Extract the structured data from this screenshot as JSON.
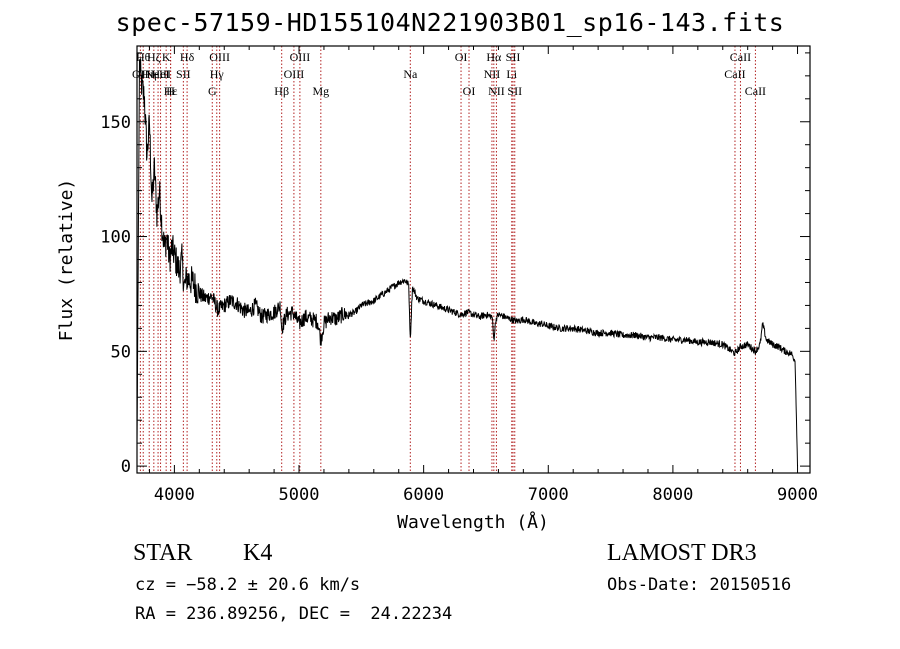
{
  "chart_data": {
    "type": "line",
    "title": "spec-57159-HD155104N221903B01_sp16-143.fits",
    "xlabel": "Wavelength (Å)",
    "ylabel": "Flux (relative)",
    "xlim": [
      3700,
      9100
    ],
    "ylim": [
      -3,
      183
    ],
    "xticks": [
      4000,
      5000,
      6000,
      7000,
      8000,
      9000
    ],
    "yticks": [
      0,
      50,
      100,
      150
    ],
    "series": [
      {
        "x": [
          3700,
          3720,
          3740,
          3760,
          3780,
          3800,
          3820,
          3840,
          3860,
          3880,
          3900,
          3920,
          3940,
          3960,
          3980,
          4000,
          4020,
          4040,
          4060,
          4080,
          4100,
          4150,
          4200,
          4250,
          4300,
          4350,
          4400,
          4450,
          4500,
          4550,
          4600,
          4650,
          4700,
          4750,
          4800,
          4850,
          4861,
          4900,
          4950,
          5000,
          5050,
          5100,
          5150,
          5175,
          5200,
          5250,
          5300,
          5350,
          5400,
          5450,
          5500,
          5550,
          5600,
          5650,
          5700,
          5750,
          5800,
          5850,
          5880,
          5893,
          5910,
          5950,
          6000,
          6050,
          6100,
          6150,
          6200,
          6250,
          6300,
          6350,
          6400,
          6450,
          6500,
          6550,
          6563,
          6580,
          6600,
          6650,
          6700,
          6750,
          6800,
          6850,
          6900,
          6950,
          7000,
          7100,
          7200,
          7300,
          7400,
          7500,
          7600,
          7700,
          7800,
          7900,
          8000,
          8100,
          8200,
          8300,
          8400,
          8498,
          8542,
          8600,
          8662,
          8700,
          8720,
          8750,
          8800,
          8850,
          8900,
          8950,
          8980,
          9000
        ],
        "y": [
          10,
          175,
          165,
          160,
          135,
          150,
          115,
          130,
          110,
          120,
          105,
          95,
          100,
          90,
          95,
          92,
          88,
          85,
          90,
          78,
          82,
          80,
          75,
          73,
          74,
          68,
          70,
          72,
          71,
          68,
          67,
          70,
          65,
          66,
          67,
          70,
          60,
          66,
          67,
          62,
          65,
          64,
          63,
          55,
          62,
          65,
          64,
          66,
          66,
          67,
          70,
          71,
          72,
          74,
          76,
          78,
          80,
          81,
          79,
          55,
          78,
          73,
          72,
          71,
          70,
          69,
          68,
          67,
          66,
          67,
          66,
          65,
          66,
          65,
          55,
          64,
          66,
          65,
          64,
          63,
          64,
          63,
          62,
          62,
          61,
          60,
          60,
          59,
          58,
          58,
          57,
          57,
          56,
          56,
          55,
          55,
          54,
          54,
          53,
          49,
          52,
          53,
          50,
          53,
          62,
          55,
          53,
          52,
          50,
          49,
          46,
          0
        ]
      }
    ],
    "lines": [
      {
        "x": 3727,
        "label": "OII",
        "row": 2
      },
      {
        "x": 3750,
        "label": "Hθ",
        "row": 1
      },
      {
        "x": 3798,
        "label": "Hη",
        "row": 2
      },
      {
        "x": 3835,
        "label": "Hζ",
        "row": 1
      },
      {
        "x": 3869,
        "label": "NeIII",
        "row": 2
      },
      {
        "x": 3889,
        "label": "HeI",
        "row": 2
      },
      {
        "x": 3934,
        "label": "K",
        "row": 1
      },
      {
        "x": 3969,
        "label": "H",
        "row": 3
      },
      {
        "x": 3970,
        "label": "Hε",
        "row": 3
      },
      {
        "x": 4072,
        "label": "SII",
        "row": 2
      },
      {
        "x": 4102,
        "label": "Hδ",
        "row": 1
      },
      {
        "x": 4304,
        "label": "G",
        "row": 3
      },
      {
        "x": 4340,
        "label": "Hγ",
        "row": 2
      },
      {
        "x": 4363,
        "label": "OIII",
        "row": 1
      },
      {
        "x": 4861,
        "label": "Hβ",
        "row": 3
      },
      {
        "x": 4959,
        "label": "OIII",
        "row": 2
      },
      {
        "x": 5007,
        "label": "OIII",
        "row": 1
      },
      {
        "x": 5175,
        "label": "Mg",
        "row": 3
      },
      {
        "x": 5893,
        "label": "Na",
        "row": 2
      },
      {
        "x": 6300,
        "label": "OI",
        "row": 1
      },
      {
        "x": 6364,
        "label": "OI",
        "row": 3
      },
      {
        "x": 6548,
        "label": "NII",
        "row": 2
      },
      {
        "x": 6563,
        "label": "Hα",
        "row": 1
      },
      {
        "x": 6584,
        "label": "NII",
        "row": 3
      },
      {
        "x": 6707,
        "label": "Li",
        "row": 2
      },
      {
        "x": 6717,
        "label": "SII",
        "row": 1
      },
      {
        "x": 6731,
        "label": "SII",
        "row": 3
      },
      {
        "x": 8498,
        "label": "CaII",
        "row": 2
      },
      {
        "x": 8542,
        "label": "CaII",
        "row": 1
      },
      {
        "x": 8662,
        "label": "CaII",
        "row": 3
      }
    ]
  },
  "info": {
    "object_class": "STAR",
    "subclass": "K4",
    "survey": "LAMOST DR3",
    "cz": "cz = −58.2 ± 20.6 km/s",
    "obs_date": "Obs-Date: 20150516",
    "coords": "RA = 236.89256, DEC =  24.22234"
  }
}
